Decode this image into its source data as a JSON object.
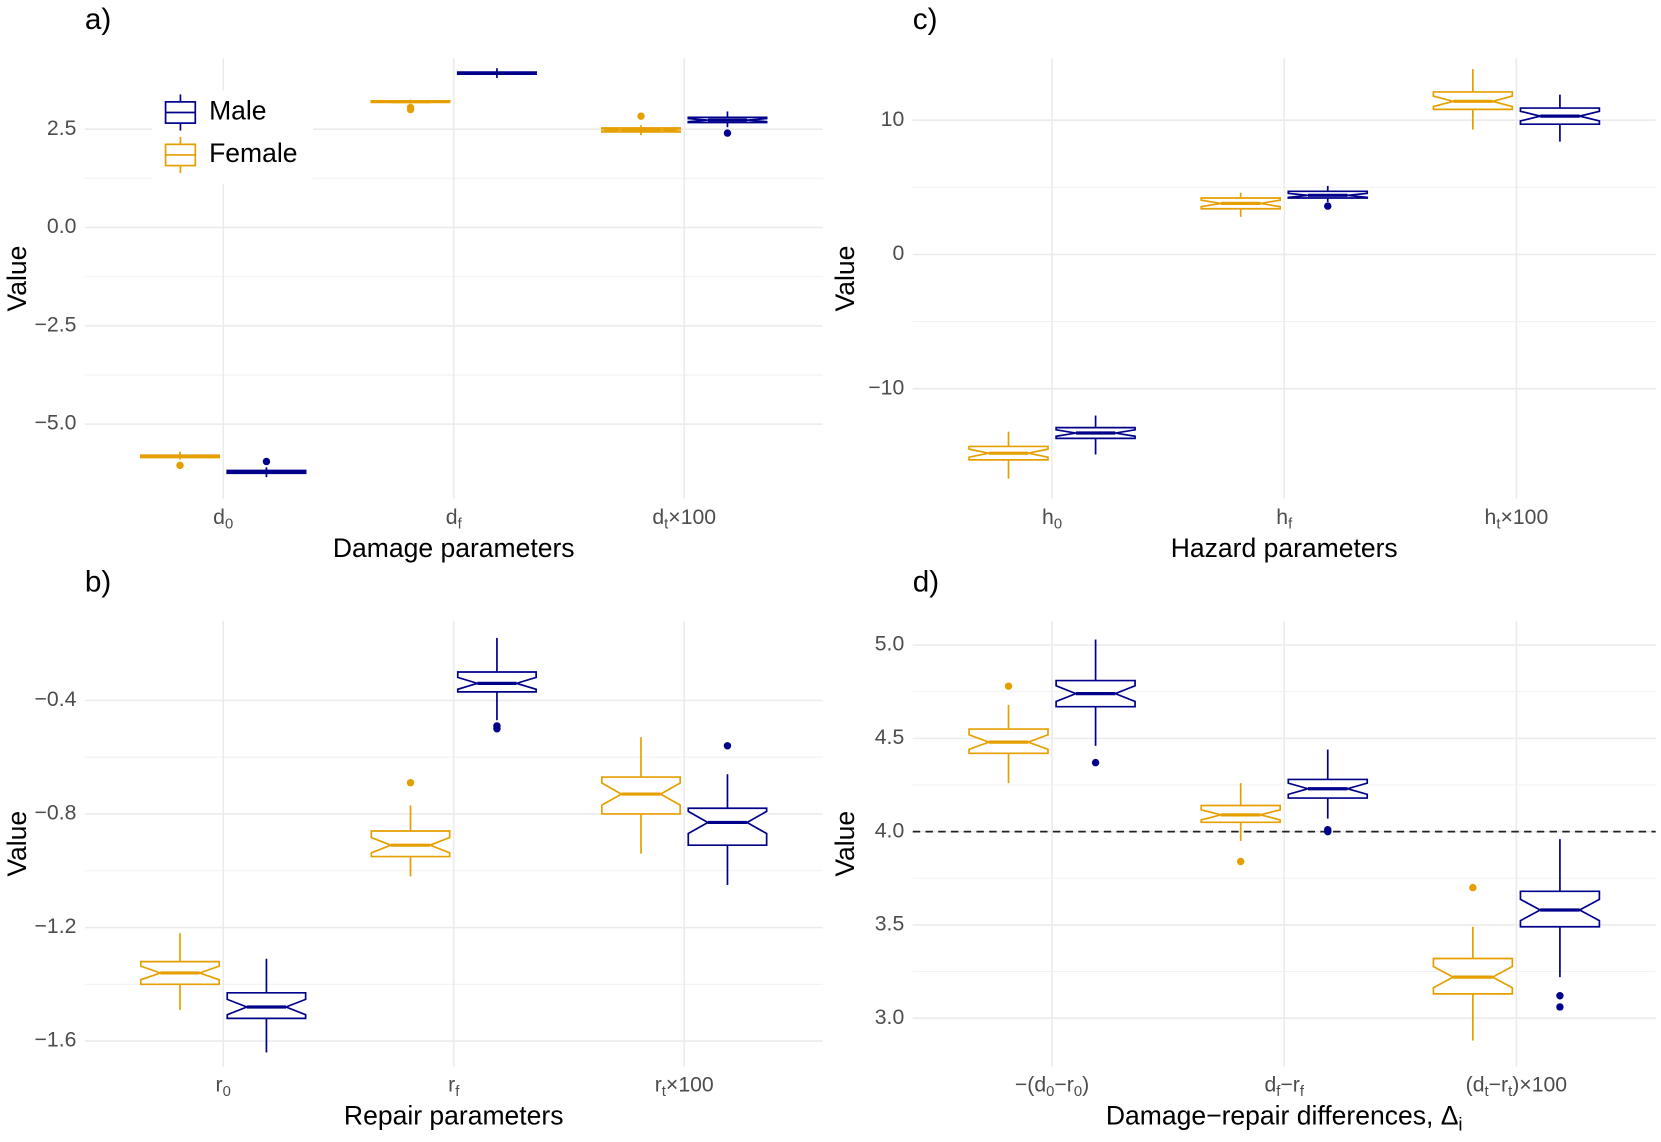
{
  "chart_data": [
    {
      "type": "box",
      "title": "a)",
      "xlabel": [
        [
          "Damage parameters"
        ]
      ],
      "ylabel": "Value",
      "categories": [
        [
          "d",
          "0"
        ],
        [
          "d",
          "f"
        ],
        [
          "d",
          "t",
          "×100"
        ]
      ],
      "ylim": [
        -6.9,
        4.3
      ],
      "yticks": [
        {
          "value": -5,
          "label": "−5.0"
        },
        {
          "value": -2.5,
          "label": "−2.5"
        },
        {
          "value": 0,
          "label": "0.0"
        },
        2.5
      ],
      "grid": true,
      "legend": "top-left",
      "series": [
        {
          "name": "Female",
          "color": "#E69F00",
          "values": [
            {
              "min": -5.9,
              "q1": -5.85,
              "median": -5.82,
              "q3": -5.79,
              "max": -5.7,
              "outliers": [
                -6.05
              ]
            },
            {
              "min": 3.15,
              "q1": 3.18,
              "median": 3.2,
              "q3": 3.22,
              "max": 3.25,
              "outliers": [
                3.0,
                3.05
              ]
            },
            {
              "min": 2.35,
              "q1": 2.43,
              "median": 2.48,
              "q3": 2.53,
              "max": 2.6,
              "outliers": [
                2.83
              ]
            }
          ]
        },
        {
          "name": "Male",
          "color": "#00008B",
          "values": [
            {
              "min": -6.35,
              "q1": -6.25,
              "median": -6.22,
              "q3": -6.18,
              "max": -6.1,
              "outliers": [
                -5.95
              ]
            },
            {
              "min": 3.8,
              "q1": 3.9,
              "median": 3.92,
              "q3": 3.95,
              "max": 4.05,
              "outliers": []
            },
            {
              "min": 2.55,
              "q1": 2.67,
              "median": 2.73,
              "q3": 2.8,
              "max": 2.95,
              "outliers": [
                2.4
              ]
            }
          ]
        }
      ]
    },
    {
      "type": "box",
      "title": "b)",
      "xlabel": [
        [
          "Repair parameters"
        ]
      ],
      "ylabel": "Value",
      "categories": [
        [
          "r",
          "0"
        ],
        [
          "r",
          "f"
        ],
        [
          "r",
          "t",
          "×100"
        ]
      ],
      "ylim": [
        -1.69,
        -0.12
      ],
      "yticks": [
        {
          "value": -1.6,
          "label": "−1.6"
        },
        {
          "value": -1.2,
          "label": "−1.2"
        },
        {
          "value": -0.8,
          "label": "−0.8"
        },
        {
          "value": -0.4,
          "label": "−0.4"
        }
      ],
      "grid": true,
      "series": [
        {
          "name": "Female",
          "color": "#E69F00",
          "values": [
            {
              "min": -1.49,
              "q1": -1.4,
              "median": -1.36,
              "q3": -1.32,
              "max": -1.22,
              "outliers": []
            },
            {
              "min": -1.02,
              "q1": -0.95,
              "median": -0.91,
              "q3": -0.86,
              "max": -0.77,
              "outliers": [
                -0.69
              ]
            },
            {
              "min": -0.94,
              "q1": -0.8,
              "median": -0.73,
              "q3": -0.67,
              "max": -0.53,
              "outliers": []
            }
          ]
        },
        {
          "name": "Male",
          "color": "#00008B",
          "values": [
            {
              "min": -1.64,
              "q1": -1.52,
              "median": -1.48,
              "q3": -1.43,
              "max": -1.31,
              "outliers": []
            },
            {
              "min": -0.47,
              "q1": -0.37,
              "median": -0.34,
              "q3": -0.3,
              "max": -0.18,
              "outliers": [
                -0.49,
                -0.5
              ]
            },
            {
              "min": -1.05,
              "q1": -0.91,
              "median": -0.83,
              "q3": -0.78,
              "max": -0.66,
              "outliers": [
                -0.56
              ]
            }
          ]
        }
      ]
    },
    {
      "type": "box",
      "title": "c)",
      "xlabel": [
        [
          "Hazard parameters"
        ]
      ],
      "ylabel": "Value",
      "categories": [
        [
          "h",
          "0"
        ],
        [
          "h",
          "f"
        ],
        [
          "h",
          "t",
          "×100"
        ]
      ],
      "ylim": [
        -18.2,
        14.6
      ],
      "yticks": [
        {
          "value": -10,
          "label": "−10"
        },
        0,
        10
      ],
      "grid": true,
      "series": [
        {
          "name": "Female",
          "color": "#E69F00",
          "values": [
            {
              "min": -16.7,
              "q1": -15.3,
              "median": -14.8,
              "q3": -14.3,
              "max": -13.2,
              "outliers": []
            },
            {
              "min": 2.8,
              "q1": 3.4,
              "median": 3.8,
              "q3": 4.2,
              "max": 4.6,
              "outliers": []
            },
            {
              "min": 9.3,
              "q1": 10.8,
              "median": 11.4,
              "q3": 12.1,
              "max": 13.8,
              "outliers": []
            }
          ]
        },
        {
          "name": "Male",
          "color": "#00008B",
          "values": [
            {
              "min": -14.9,
              "q1": -13.7,
              "median": -13.3,
              "q3": -12.9,
              "max": -12.0,
              "outliers": []
            },
            {
              "min": 3.9,
              "q1": 4.2,
              "median": 4.4,
              "q3": 4.7,
              "max": 5.1,
              "outliers": [
                3.6
              ]
            },
            {
              "min": 8.4,
              "q1": 9.7,
              "median": 10.3,
              "q3": 10.9,
              "max": 11.9,
              "outliers": []
            }
          ]
        }
      ]
    },
    {
      "type": "box",
      "title": "d)",
      "xlabel": [
        [
          "Damage−repair differences, Δ",
          "i"
        ]
      ],
      "ylabel": "Value",
      "categories": [
        [
          "−(d",
          "0",
          "−r",
          "0",
          ")"
        ],
        [
          "d",
          "f",
          "−r",
          "f"
        ],
        [
          "(d",
          "t",
          "−r",
          "t",
          ")×100"
        ]
      ],
      "ylim": [
        2.74,
        5.13
      ],
      "yticks": [
        {
          "value": 3,
          "label": "3.0"
        },
        3.5,
        {
          "value": 4,
          "label": "4.0"
        },
        4.5,
        {
          "value": 5,
          "label": "5.0"
        }
      ],
      "grid": true,
      "hline": 4,
      "series": [
        {
          "name": "Female",
          "color": "#E69F00",
          "values": [
            {
              "min": 4.26,
              "q1": 4.42,
              "median": 4.48,
              "q3": 4.55,
              "max": 4.68,
              "outliers": [
                4.78
              ]
            },
            {
              "min": 3.95,
              "q1": 4.05,
              "median": 4.09,
              "q3": 4.14,
              "max": 4.26,
              "outliers": [
                3.84
              ]
            },
            {
              "min": 2.88,
              "q1": 3.13,
              "median": 3.22,
              "q3": 3.32,
              "max": 3.49,
              "outliers": [
                3.7
              ]
            }
          ]
        },
        {
          "name": "Male",
          "color": "#00008B",
          "values": [
            {
              "min": 4.46,
              "q1": 4.67,
              "median": 4.74,
              "q3": 4.81,
              "max": 5.03,
              "outliers": [
                4.37
              ]
            },
            {
              "min": 4.07,
              "q1": 4.18,
              "median": 4.23,
              "q3": 4.28,
              "max": 4.44,
              "outliers": [
                4.0,
                4.01
              ]
            },
            {
              "min": 3.22,
              "q1": 3.49,
              "median": 3.58,
              "q3": 3.68,
              "max": 3.96,
              "outliers": [
                3.12,
                3.06
              ]
            }
          ]
        }
      ]
    }
  ]
}
